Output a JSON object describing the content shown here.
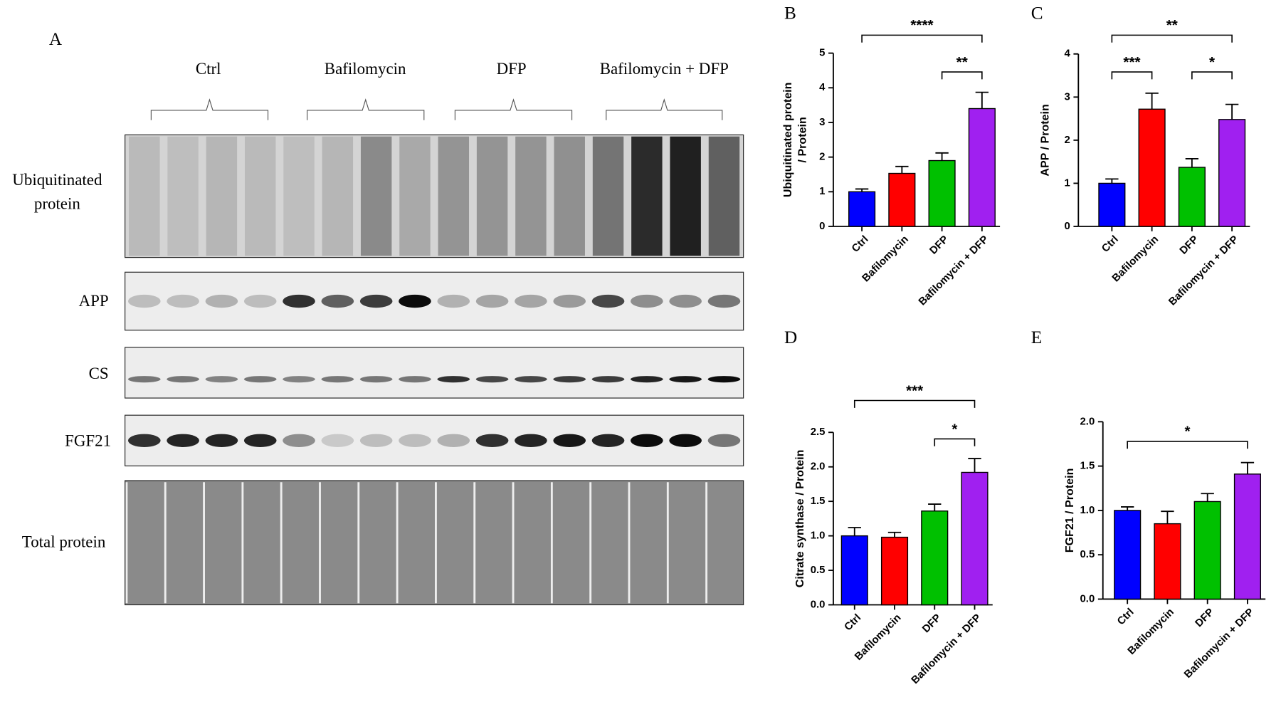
{
  "blot": {
    "panel": "A",
    "groups": [
      "Ctrl",
      "Bafilomycin",
      "DFP",
      "Bafilomycin + DFP"
    ],
    "rows": [
      [
        "Ubiquitinated",
        "protein"
      ],
      [
        "APP"
      ],
      [
        "CS"
      ],
      [
        "FGF21"
      ],
      [
        "Total protein"
      ]
    ]
  },
  "chart_data": [
    {
      "type": "bar",
      "panel": "B",
      "ylabel": [
        "Ubiquitinated protein",
        "/ Protein"
      ],
      "categories": [
        "Ctrl",
        "Bafilomycin",
        "DFP",
        "Bafilomycin + DFP"
      ],
      "values": [
        1.0,
        1.53,
        1.9,
        3.4
      ],
      "errors": [
        0.08,
        0.2,
        0.22,
        0.47
      ],
      "colors": [
        "#0000ff",
        "#ff0000",
        "#00c000",
        "#a020f0"
      ],
      "ylim": [
        0,
        5
      ],
      "yticks": [
        0,
        1,
        2,
        3,
        4,
        5
      ],
      "annotations": [
        {
          "text": "****",
          "between": [
            "Ctrl",
            "Bafilomycin + DFP"
          ]
        },
        {
          "text": "**",
          "between": [
            "DFP",
            "Bafilomycin + DFP"
          ]
        }
      ]
    },
    {
      "type": "bar",
      "panel": "C",
      "ylabel": "APP / Protein",
      "categories": [
        "Ctrl",
        "Bafilomycin",
        "DFP",
        "Bafilomycin + DFP"
      ],
      "values": [
        1.0,
        2.72,
        1.37,
        2.48
      ],
      "errors": [
        0.1,
        0.37,
        0.2,
        0.35
      ],
      "colors": [
        "#0000ff",
        "#ff0000",
        "#00c000",
        "#a020f0"
      ],
      "ylim": [
        0,
        4
      ],
      "yticks": [
        0,
        1,
        2,
        3,
        4
      ],
      "annotations": [
        {
          "text": "**",
          "between": [
            "Ctrl",
            "Bafilomycin + DFP"
          ]
        },
        {
          "text": "***",
          "between": [
            "Ctrl",
            "Bafilomycin"
          ]
        },
        {
          "text": "*",
          "between": [
            "DFP",
            "Bafilomycin + DFP"
          ]
        }
      ]
    },
    {
      "type": "bar",
      "panel": "D",
      "ylabel": "Citrate synthase / Protein",
      "categories": [
        "Ctrl",
        "Bafilomycin",
        "DFP",
        "Bafilomycin + DFP"
      ],
      "values": [
        1.0,
        0.98,
        1.36,
        1.92
      ],
      "errors": [
        0.12,
        0.07,
        0.1,
        0.2
      ],
      "colors": [
        "#0000ff",
        "#ff0000",
        "#00c000",
        "#a020f0"
      ],
      "ylim": [
        0,
        2.5
      ],
      "yticks": [
        {
          "value": 0,
          "label": "0.0"
        },
        {
          "value": 0.5,
          "label": "0.5"
        },
        {
          "value": 1,
          "label": "1.0"
        },
        {
          "value": 1.5,
          "label": "1.5"
        },
        {
          "value": 2,
          "label": "2.0"
        },
        {
          "value": 2.5,
          "label": "2.5"
        }
      ],
      "annotations": [
        {
          "text": "***",
          "between": [
            "Ctrl",
            "Bafilomycin + DFP"
          ]
        },
        {
          "text": "*",
          "between": [
            "DFP",
            "Bafilomycin + DFP"
          ]
        }
      ]
    },
    {
      "type": "bar",
      "panel": "E",
      "ylabel": "FGF21 / Protein",
      "categories": [
        "Ctrl",
        "Bafilomycin",
        "DFP",
        "Bafilomycin + DFP"
      ],
      "values": [
        1.0,
        0.85,
        1.1,
        1.41
      ],
      "errors": [
        0.04,
        0.14,
        0.09,
        0.13
      ],
      "colors": [
        "#0000ff",
        "#ff0000",
        "#00c000",
        "#a020f0"
      ],
      "ylim": [
        0,
        2
      ],
      "yticks": [
        {
          "value": 0,
          "label": "0.0"
        },
        {
          "value": 0.5,
          "label": "0.5"
        },
        {
          "value": 1,
          "label": "1.0"
        },
        {
          "value": 1.5,
          "label": "1.5"
        },
        {
          "value": 2,
          "label": "2.0"
        }
      ],
      "annotations": [
        {
          "text": "*",
          "between": [
            "Ctrl",
            "Bafilomycin + DFP"
          ]
        }
      ]
    }
  ]
}
